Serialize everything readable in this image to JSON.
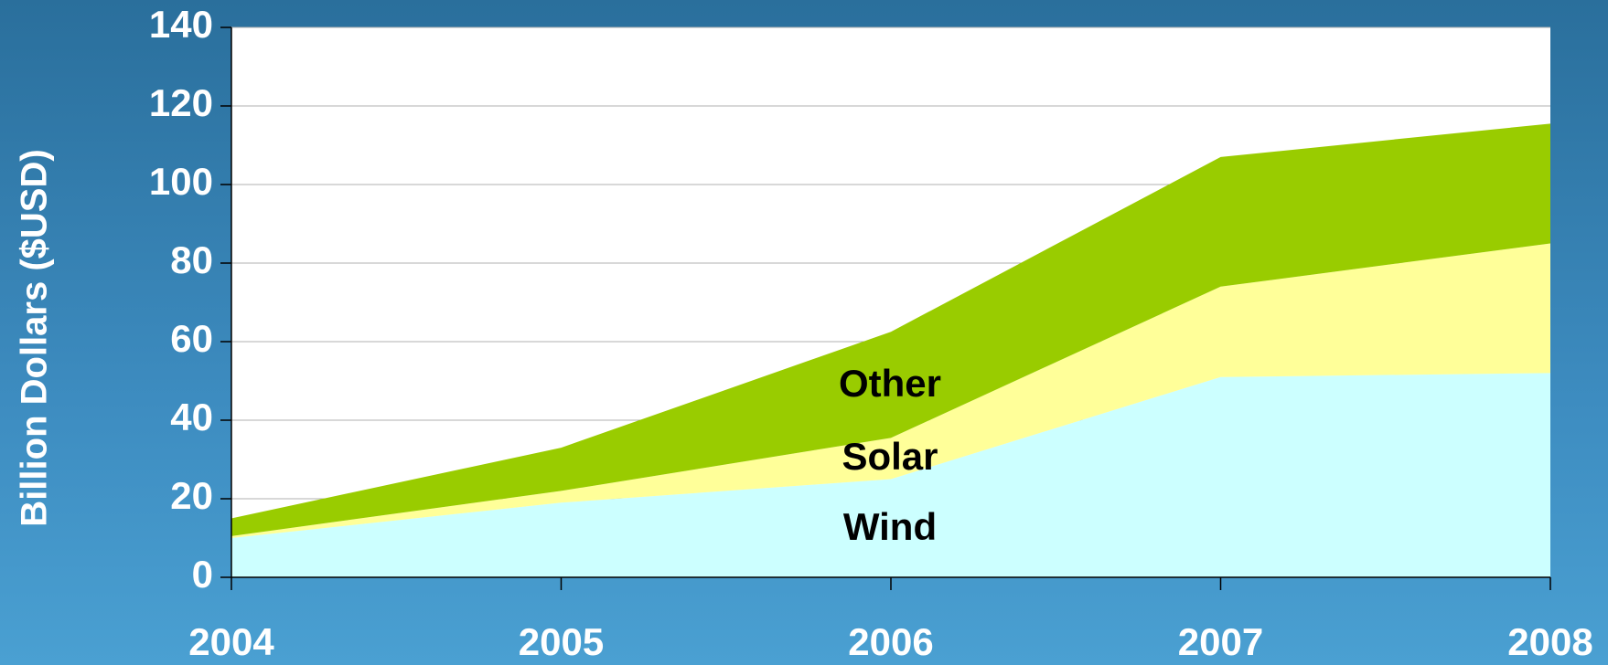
{
  "chart_data": {
    "type": "stacked_area",
    "ylabel": "Billion Dollars ($USD)",
    "categories": [
      "2004",
      "2005",
      "2006",
      "2007",
      "2008"
    ],
    "series": [
      {
        "name": "Wind",
        "color": "#ccffff",
        "values": [
          10,
          19,
          25,
          51,
          52
        ]
      },
      {
        "name": "Solar",
        "color": "#ffff99",
        "values": [
          0.5,
          3,
          10.5,
          23,
          33
        ]
      },
      {
        "name": "Other",
        "color": "#99cc00",
        "values": [
          4.5,
          11,
          27,
          33,
          30.5
        ]
      }
    ],
    "ylim": [
      0,
      140
    ],
    "yticks": [
      0,
      20,
      40,
      60,
      80,
      100,
      120,
      140
    ],
    "grid": true
  }
}
